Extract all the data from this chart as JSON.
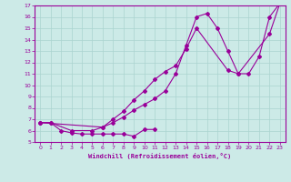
{
  "background_color": "#cceae7",
  "grid_color": "#aad4d0",
  "line_color": "#990099",
  "xlabel": "Windchill (Refroidissement éolien,°C)",
  "xlim": [
    -0.5,
    23.5
  ],
  "ylim": [
    5,
    17
  ],
  "yticks": [
    5,
    6,
    7,
    8,
    9,
    10,
    11,
    12,
    13,
    14,
    15,
    16,
    17
  ],
  "xticks": [
    0,
    1,
    2,
    3,
    4,
    5,
    6,
    7,
    8,
    9,
    10,
    11,
    12,
    13,
    14,
    15,
    16,
    17,
    18,
    19,
    20,
    21,
    22,
    23
  ],
  "series1_x": [
    0,
    1,
    2,
    3,
    4,
    5,
    6,
    7,
    8,
    9,
    10,
    11
  ],
  "series1_y": [
    6.7,
    6.7,
    6.0,
    5.8,
    5.7,
    5.7,
    5.7,
    5.7,
    5.7,
    5.5,
    6.1,
    6.1
  ],
  "series2_x": [
    0,
    1,
    3,
    5,
    6,
    7,
    8,
    9,
    10,
    11,
    12,
    13,
    14,
    15,
    16,
    17,
    18,
    19,
    20,
    21,
    22,
    23
  ],
  "series2_y": [
    6.7,
    6.7,
    6.0,
    6.0,
    6.3,
    6.7,
    7.2,
    7.8,
    8.3,
    8.8,
    9.5,
    11.0,
    13.5,
    16.0,
    16.3,
    15.0,
    13.0,
    11.0,
    11.0,
    12.5,
    16.0,
    17.2
  ],
  "series3_x": [
    0,
    6,
    7,
    8,
    9,
    10,
    11,
    12,
    13,
    14,
    15,
    18,
    19,
    22,
    23
  ],
  "series3_y": [
    6.7,
    6.3,
    7.0,
    7.7,
    8.7,
    9.5,
    10.5,
    11.2,
    11.7,
    13.2,
    15.0,
    11.3,
    11.0,
    14.5,
    17.2
  ]
}
